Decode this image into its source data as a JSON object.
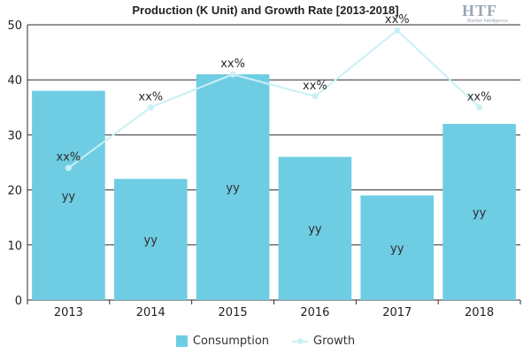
{
  "chart_data": {
    "type": "bar",
    "title": "Production (K Unit) and Growth Rate [2013-2018]",
    "categories": [
      "2013",
      "2014",
      "2015",
      "2016",
      "2017",
      "2018"
    ],
    "series": [
      {
        "name": "Consumption",
        "type": "bar",
        "values": [
          38,
          22,
          41,
          26,
          19,
          32
        ],
        "data_labels": [
          "yy",
          "yy",
          "yy",
          "yy",
          "yy",
          "yy"
        ],
        "color": "#6fcde3"
      },
      {
        "name": "Growth",
        "type": "line",
        "values": [
          24,
          35,
          41,
          37,
          49,
          35
        ],
        "data_labels": [
          "xx%",
          "xx%",
          "xx%",
          "xx%",
          "xx%",
          "xx%"
        ],
        "color": "#c9f0f4"
      }
    ],
    "ylim": [
      0,
      50
    ],
    "yticks": [
      0,
      10,
      20,
      30,
      40,
      50
    ],
    "grid": "horizontal",
    "legend_position": "bottom-center"
  },
  "logo": {
    "brand": "HTF",
    "tagline": "Market Intelligence"
  }
}
